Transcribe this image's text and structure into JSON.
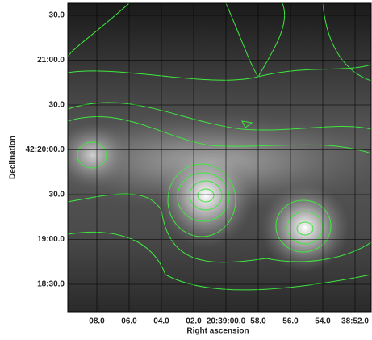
{
  "chart_data": {
    "type": "image",
    "x_label": "Right ascension",
    "y_label": "Declination",
    "x_tick_labels": [
      "08.0",
      "06.0",
      "04.0",
      "02.0",
      "20:39:00.0",
      "58.0",
      "56.0",
      "54.0",
      "38:52.0"
    ],
    "y_tick_labels": [
      "30.0",
      "21:00.0",
      "30.0",
      "42:20:00.0",
      "30.0",
      "19:00.0",
      "18:30.0"
    ]
  }
}
